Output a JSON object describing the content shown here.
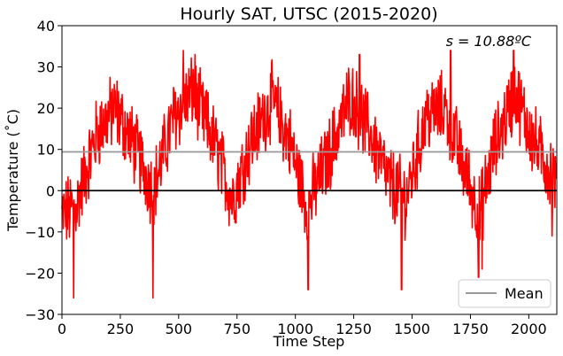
{
  "chart_data": {
    "type": "line",
    "title": "Hourly SAT, UTSC (2015-2020)",
    "xlabel": "Time Step",
    "ylabel": "Temperature (˚C)",
    "xlim": [
      0,
      2120
    ],
    "ylim": [
      -30,
      40
    ],
    "xticks": [
      "0",
      "250",
      "500",
      "750",
      "1000",
      "1250",
      "1500",
      "1750",
      "2000"
    ],
    "yticks": [
      "−30",
      "−20",
      "−10",
      "0",
      "10",
      "20",
      "30",
      "40"
    ],
    "annotation": "s = 10.88ºC",
    "grid": false,
    "legend_position": "bottom-right",
    "legend": [
      "Mean"
    ],
    "reference_lines": [
      {
        "name": "Mean",
        "y": 9.4,
        "color": "#999999"
      },
      {
        "y": 0,
        "color": "#000000"
      }
    ],
    "series": [
      {
        "color": "#ff0000",
        "seasonal_baseline": {
          "x": [
            0,
            60,
            150,
            225,
            300,
            390,
            480,
            560,
            650,
            730,
            810,
            900,
            975,
            1050,
            1140,
            1235,
            1320,
            1400,
            1475,
            1560,
            1640,
            1720,
            1790,
            1850,
            1940,
            2020,
            2120
          ],
          "y": [
            -6,
            -4,
            14,
            20,
            12,
            0,
            18,
            24,
            12,
            -2,
            12,
            22,
            12,
            -4,
            8,
            23,
            14,
            2,
            -2,
            18,
            20,
            6,
            -6,
            10,
            24,
            12,
            2
          ]
        },
        "noise_amplitude": 8,
        "observed_extremes": {
          "x": [
            50,
            390,
            520,
            570,
            1055,
            1275,
            1455,
            1665,
            1785,
            1800,
            1935,
            2100
          ],
          "y": [
            -26,
            -26,
            34,
            33,
            -24,
            33,
            -24,
            34,
            -21,
            -19,
            34,
            -11
          ]
        }
      }
    ]
  }
}
